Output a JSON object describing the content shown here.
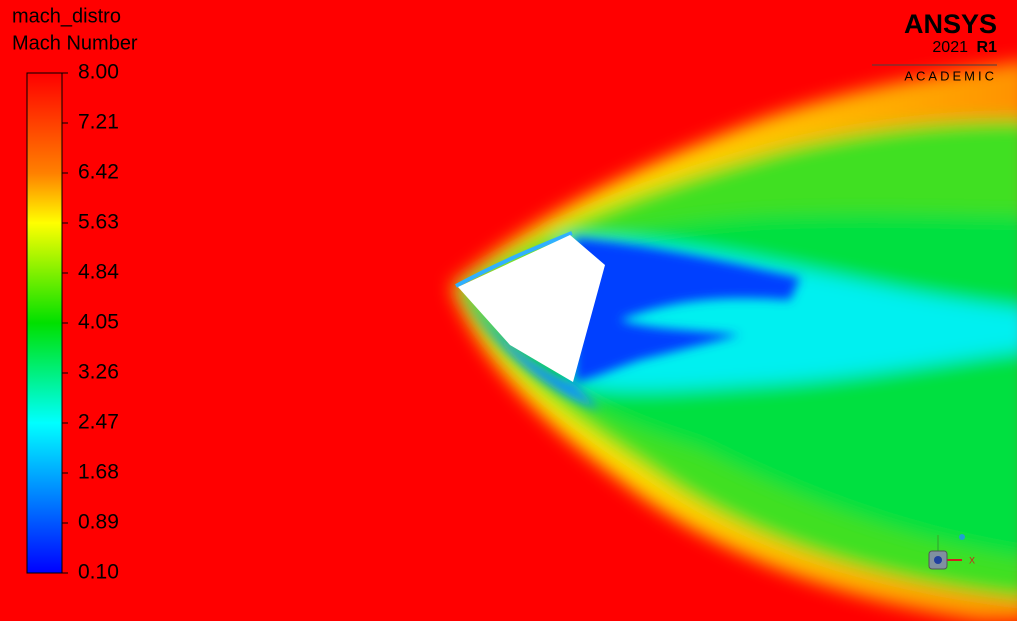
{
  "colorbar": {
    "title": "mach_distro",
    "quantity": "Mach Number",
    "ticks": [
      "8.00",
      "7.21",
      "6.42",
      "5.63",
      "4.84",
      "4.05",
      "3.26",
      "2.47",
      "1.68",
      "0.89",
      "0.10"
    ]
  },
  "logo": {
    "brand": "ANSYS",
    "year": "2021",
    "release": "R1",
    "edition": "ACADEMIC"
  },
  "triad": {
    "x_label": "X"
  }
}
